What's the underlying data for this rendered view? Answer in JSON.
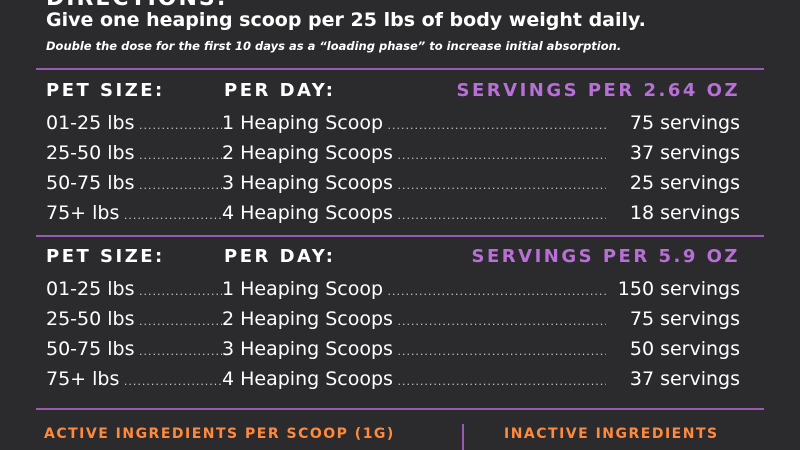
{
  "heading": "DIRECTIONS:",
  "intro": "Give one heaping scoop per 25 lbs of body weight daily.",
  "note": "Double the dose for the first 10 days as a “loading phase” to increase initial absorption.",
  "table1": {
    "head_size": "PET SIZE:",
    "head_day": "PER DAY:",
    "head_serv": "SERVINGS PER 2.64 OZ",
    "rows": [
      {
        "size": "01-25 lbs",
        "day": "1 Heaping Scoop",
        "serv": "75 servings"
      },
      {
        "size": "25-50 lbs",
        "day": "2 Heaping Scoops",
        "serv": "37 servings"
      },
      {
        "size": "50-75 lbs",
        "day": "3 Heaping Scoops",
        "serv": "25 servings"
      },
      {
        "size": "75+ lbs",
        "day": "4 Heaping Scoops",
        "serv": "18 servings"
      }
    ]
  },
  "table2": {
    "head_size": "PET SIZE:",
    "head_day": "PER DAY:",
    "head_serv": "SERVINGS PER 5.9 OZ",
    "rows": [
      {
        "size": "01-25 lbs",
        "day": "1 Heaping Scoop",
        "serv": "150 servings"
      },
      {
        "size": "25-50 lbs",
        "day": "2 Heaping Scoops",
        "serv": "75 servings"
      },
      {
        "size": "50-75 lbs",
        "day": "3 Heaping Scoops",
        "serv": "50 servings"
      },
      {
        "size": "75+ lbs",
        "day": "4 Heaping Scoops",
        "serv": "37 servings"
      }
    ]
  },
  "footer": {
    "active": "ACTIVE INGREDIENTS PER SCOOP (1G)",
    "inactive": "INACTIVE INGREDIENTS"
  },
  "colors": {
    "background": "#2b2b2d",
    "accent_purple": "#b86fd6",
    "accent_orange": "#ff8a3d"
  }
}
